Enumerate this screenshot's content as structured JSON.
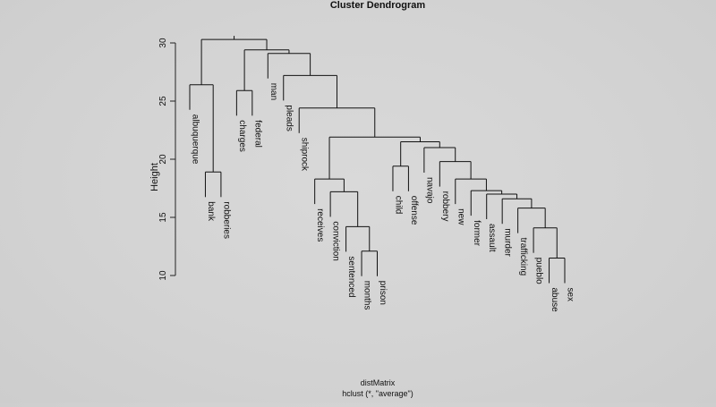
{
  "chart_data": {
    "type": "dendrogram",
    "title": "Cluster Dendrogram",
    "ylabel": "Height",
    "xlabel": "distMatrix",
    "sub": "hclust (*, \"average\")",
    "ylim": [
      10,
      30
    ],
    "yticks": [
      10,
      15,
      20,
      25,
      30
    ],
    "leaves": [
      {
        "id": "albuquerque",
        "label": "albuquerque"
      },
      {
        "id": "bank",
        "label": "bank"
      },
      {
        "id": "robberies",
        "label": "robberies"
      },
      {
        "id": "charges",
        "label": "charges"
      },
      {
        "id": "federal",
        "label": "federal"
      },
      {
        "id": "man",
        "label": "man"
      },
      {
        "id": "pleads",
        "label": "pleads"
      },
      {
        "id": "shiprock",
        "label": "shiprock"
      },
      {
        "id": "receives",
        "label": "receives"
      },
      {
        "id": "conviction",
        "label": "conviction"
      },
      {
        "id": "sentenced",
        "label": "sentenced"
      },
      {
        "id": "months",
        "label": "months"
      },
      {
        "id": "prison",
        "label": "prison"
      },
      {
        "id": "child",
        "label": "child"
      },
      {
        "id": "offense",
        "label": "offense"
      },
      {
        "id": "navajo",
        "label": "navajo"
      },
      {
        "id": "robbery",
        "label": "robbery"
      },
      {
        "id": "new",
        "label": "new"
      },
      {
        "id": "former",
        "label": "former"
      },
      {
        "id": "assault",
        "label": "assault"
      },
      {
        "id": "murder",
        "label": "murder"
      },
      {
        "id": "trafficking",
        "label": "trafficking"
      },
      {
        "id": "pueblo",
        "label": "pueblo"
      },
      {
        "id": "abuse",
        "label": "abuse"
      },
      {
        "id": "sex",
        "label": "sex"
      }
    ],
    "merges": [
      {
        "id": "m_bank_rob",
        "children": [
          "bank",
          "robberies"
        ],
        "height": 18.9
      },
      {
        "id": "m_alb",
        "children": [
          "albuquerque",
          "m_bank_rob"
        ],
        "height": 26.4
      },
      {
        "id": "m_charges_fed",
        "children": [
          "charges",
          "federal"
        ],
        "height": 25.9
      },
      {
        "id": "m_months_prison",
        "children": [
          "months",
          "prison"
        ],
        "height": 12.1
      },
      {
        "id": "m_sentenced",
        "children": [
          "sentenced",
          "m_months_prison"
        ],
        "height": 14.2
      },
      {
        "id": "m_conviction",
        "children": [
          "conviction",
          "m_sentenced"
        ],
        "height": 17.2
      },
      {
        "id": "m_receives",
        "children": [
          "receives",
          "m_conviction"
        ],
        "height": 18.3
      },
      {
        "id": "m_child_off",
        "children": [
          "child",
          "offense"
        ],
        "height": 19.4
      },
      {
        "id": "m_abuse_sex",
        "children": [
          "abuse",
          "sex"
        ],
        "height": 11.5
      },
      {
        "id": "m_pueblo",
        "children": [
          "pueblo",
          "m_abuse_sex"
        ],
        "height": 14.1
      },
      {
        "id": "m_traff",
        "children": [
          "trafficking",
          "m_pueblo"
        ],
        "height": 15.8
      },
      {
        "id": "m_murder",
        "children": [
          "murder",
          "m_traff"
        ],
        "height": 16.6
      },
      {
        "id": "m_assault",
        "children": [
          "assault",
          "m_murder"
        ],
        "height": 17.0
      },
      {
        "id": "m_former",
        "children": [
          "former",
          "m_assault"
        ],
        "height": 17.3
      },
      {
        "id": "m_new",
        "children": [
          "new",
          "m_former"
        ],
        "height": 18.3
      },
      {
        "id": "m_robbery",
        "children": [
          "robbery",
          "m_new"
        ],
        "height": 19.8
      },
      {
        "id": "m_navajo",
        "children": [
          "navajo",
          "m_robbery"
        ],
        "height": 21.0
      },
      {
        "id": "m_child_group",
        "children": [
          "m_child_off",
          "m_navajo"
        ],
        "height": 21.5
      },
      {
        "id": "m_big",
        "children": [
          "m_receives",
          "m_child_group"
        ],
        "height": 21.9
      },
      {
        "id": "m_shiprock",
        "children": [
          "shiprock",
          "m_big"
        ],
        "height": 24.4
      },
      {
        "id": "m_pleads",
        "children": [
          "pleads",
          "m_shiprock"
        ],
        "height": 27.2
      },
      {
        "id": "m_man",
        "children": [
          "man",
          "m_pleads"
        ],
        "height": 29.1
      },
      {
        "id": "m_charges_group",
        "children": [
          "m_charges_fed",
          "m_man"
        ],
        "height": 29.4
      },
      {
        "id": "m_root",
        "children": [
          "m_alb",
          "m_charges_group"
        ],
        "height": 30.3
      }
    ]
  }
}
